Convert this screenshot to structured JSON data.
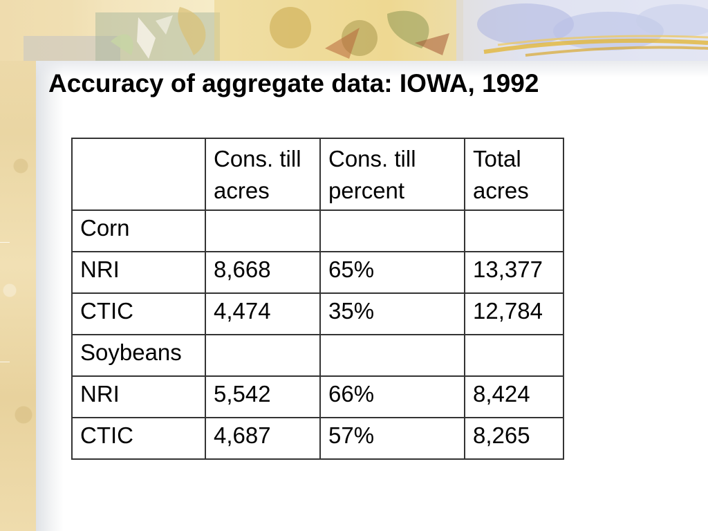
{
  "slide": {
    "title": "Accuracy of aggregate data: IOWA, 1992"
  },
  "table": {
    "headers": [
      {
        "line1": "",
        "line2": ""
      },
      {
        "line1": "Cons. till",
        "line2": "acres"
      },
      {
        "line1": "Cons. till",
        "line2": "percent"
      },
      {
        "line1": "Total",
        "line2": "acres"
      }
    ],
    "rows": [
      [
        "Corn",
        "",
        "",
        ""
      ],
      [
        "NRI",
        "8,668",
        "65%",
        "13,377"
      ],
      [
        "CTIC",
        "4,474",
        "35%",
        "12,784"
      ],
      [
        "Soybeans",
        "",
        "",
        ""
      ],
      [
        "NRI",
        "5,542",
        "66%",
        "8,424"
      ],
      [
        "CTIC",
        "4,687",
        "57%",
        "8,265"
      ]
    ]
  },
  "colors": {
    "title": "#000000",
    "table_border": "#333333",
    "parchment": "#efdcae"
  }
}
